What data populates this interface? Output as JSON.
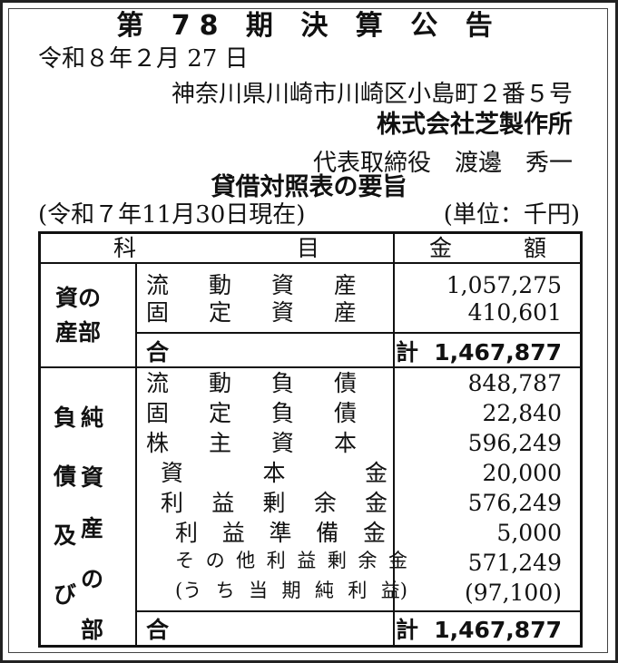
{
  "header": {
    "title": "第 78 期 決 算 公 告",
    "date": "令和８年２月 27 日",
    "address": "神奈川県川崎市川崎区小島町２番５号",
    "company": "株式会社芝製作所",
    "representative": "代表取締役　渡邊　秀一",
    "statement_title": "貸借対照表の要旨",
    "as_of": "(令和７年11月30日現在)",
    "unit": "(単位：千円)"
  },
  "table": {
    "headers": {
      "subject_left": "科",
      "subject_right": "目",
      "amount_left": "金",
      "amount_right": "額"
    },
    "assets": {
      "section_label_line1": "資の",
      "section_label_line2": "産部",
      "rows": [
        {
          "label": [
            "流",
            "動",
            "資",
            "産"
          ],
          "amount": "1,057,275"
        },
        {
          "label": [
            "固",
            "定",
            "資",
            "産"
          ],
          "amount": "410,601"
        }
      ],
      "total": {
        "label": [
          "合",
          "計"
        ],
        "amount": "1,467,877"
      }
    },
    "liabilities": {
      "section_label_col1": [
        "負",
        "債",
        "及",
        "び"
      ],
      "section_label_col2": [
        "純",
        "資",
        "産",
        "の",
        "部"
      ],
      "rows": [
        {
          "label": [
            "流",
            "動",
            "負",
            "債"
          ],
          "amount": "848,787",
          "indent": 0
        },
        {
          "label": [
            "固",
            "定",
            "負",
            "債"
          ],
          "amount": "22,840",
          "indent": 0
        },
        {
          "label": [
            "株",
            "主",
            "資",
            "本"
          ],
          "amount": "596,249",
          "indent": 0
        },
        {
          "label": [
            "資",
            "本",
            "金"
          ],
          "amount": "20,000",
          "indent": 1
        },
        {
          "label": [
            "利",
            "益",
            "剰",
            "余",
            "金"
          ],
          "amount": "576,249",
          "indent": 1
        },
        {
          "label": [
            "利",
            "益",
            "準",
            "備",
            "金"
          ],
          "amount": "5,000",
          "indent": 2
        },
        {
          "label": [
            "そ",
            "の",
            "他",
            "利",
            "益",
            "剰",
            "余",
            "金"
          ],
          "amount": "571,249",
          "indent": 2
        },
        {
          "label": [
            "(う",
            "ち",
            "当",
            "期",
            "純",
            "利",
            "益)"
          ],
          "amount": "(97,100)",
          "indent": 2
        }
      ],
      "total": {
        "label": [
          "合",
          "計"
        ],
        "amount": "1,467,877"
      }
    }
  }
}
